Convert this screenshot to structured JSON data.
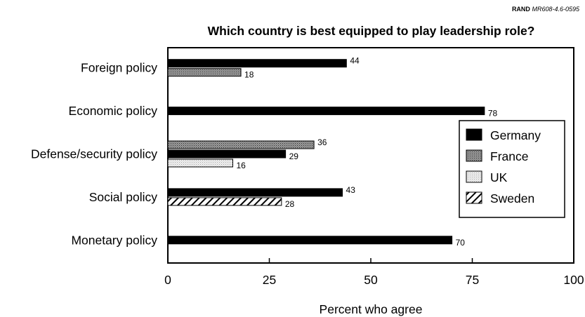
{
  "source_ref": {
    "org": "RAND",
    "code": "MR608-4.6-0595"
  },
  "chart_data": {
    "type": "bar",
    "orientation": "horizontal",
    "title": "Which country is best equipped to play leadership role?",
    "xlabel": "Percent who agree",
    "ylabel": "",
    "xlim": [
      0,
      100
    ],
    "xticks": [
      0,
      25,
      50,
      75,
      100
    ],
    "legend_position": "right",
    "categories": [
      "Foreign policy",
      "Economic policy",
      "Defense/security policy",
      "Social policy",
      "Monetary policy"
    ],
    "bars": [
      {
        "category": "Foreign policy",
        "series": "Germany",
        "value": 44
      },
      {
        "category": "Foreign policy",
        "series": "France",
        "value": 18
      },
      {
        "category": "Economic policy",
        "series": "Germany",
        "value": 78
      },
      {
        "category": "Defense/security policy",
        "series": "France",
        "value": 36
      },
      {
        "category": "Defense/security policy",
        "series": "Germany",
        "value": 29
      },
      {
        "category": "Defense/security policy",
        "series": "UK",
        "value": 16
      },
      {
        "category": "Social policy",
        "series": "Germany",
        "value": 43
      },
      {
        "category": "Social policy",
        "series": "Sweden",
        "value": 28
      },
      {
        "category": "Monetary policy",
        "series": "Germany",
        "value": 70
      }
    ],
    "series": [
      {
        "name": "Germany",
        "fill": "solid",
        "color": "#000000"
      },
      {
        "name": "France",
        "fill": "dark-stipple",
        "color": "#808080"
      },
      {
        "name": "UK",
        "fill": "light-stipple",
        "color": "#d8d8d8"
      },
      {
        "name": "Sweden",
        "fill": "diagonal-hatch",
        "color": "#000000"
      }
    ]
  }
}
